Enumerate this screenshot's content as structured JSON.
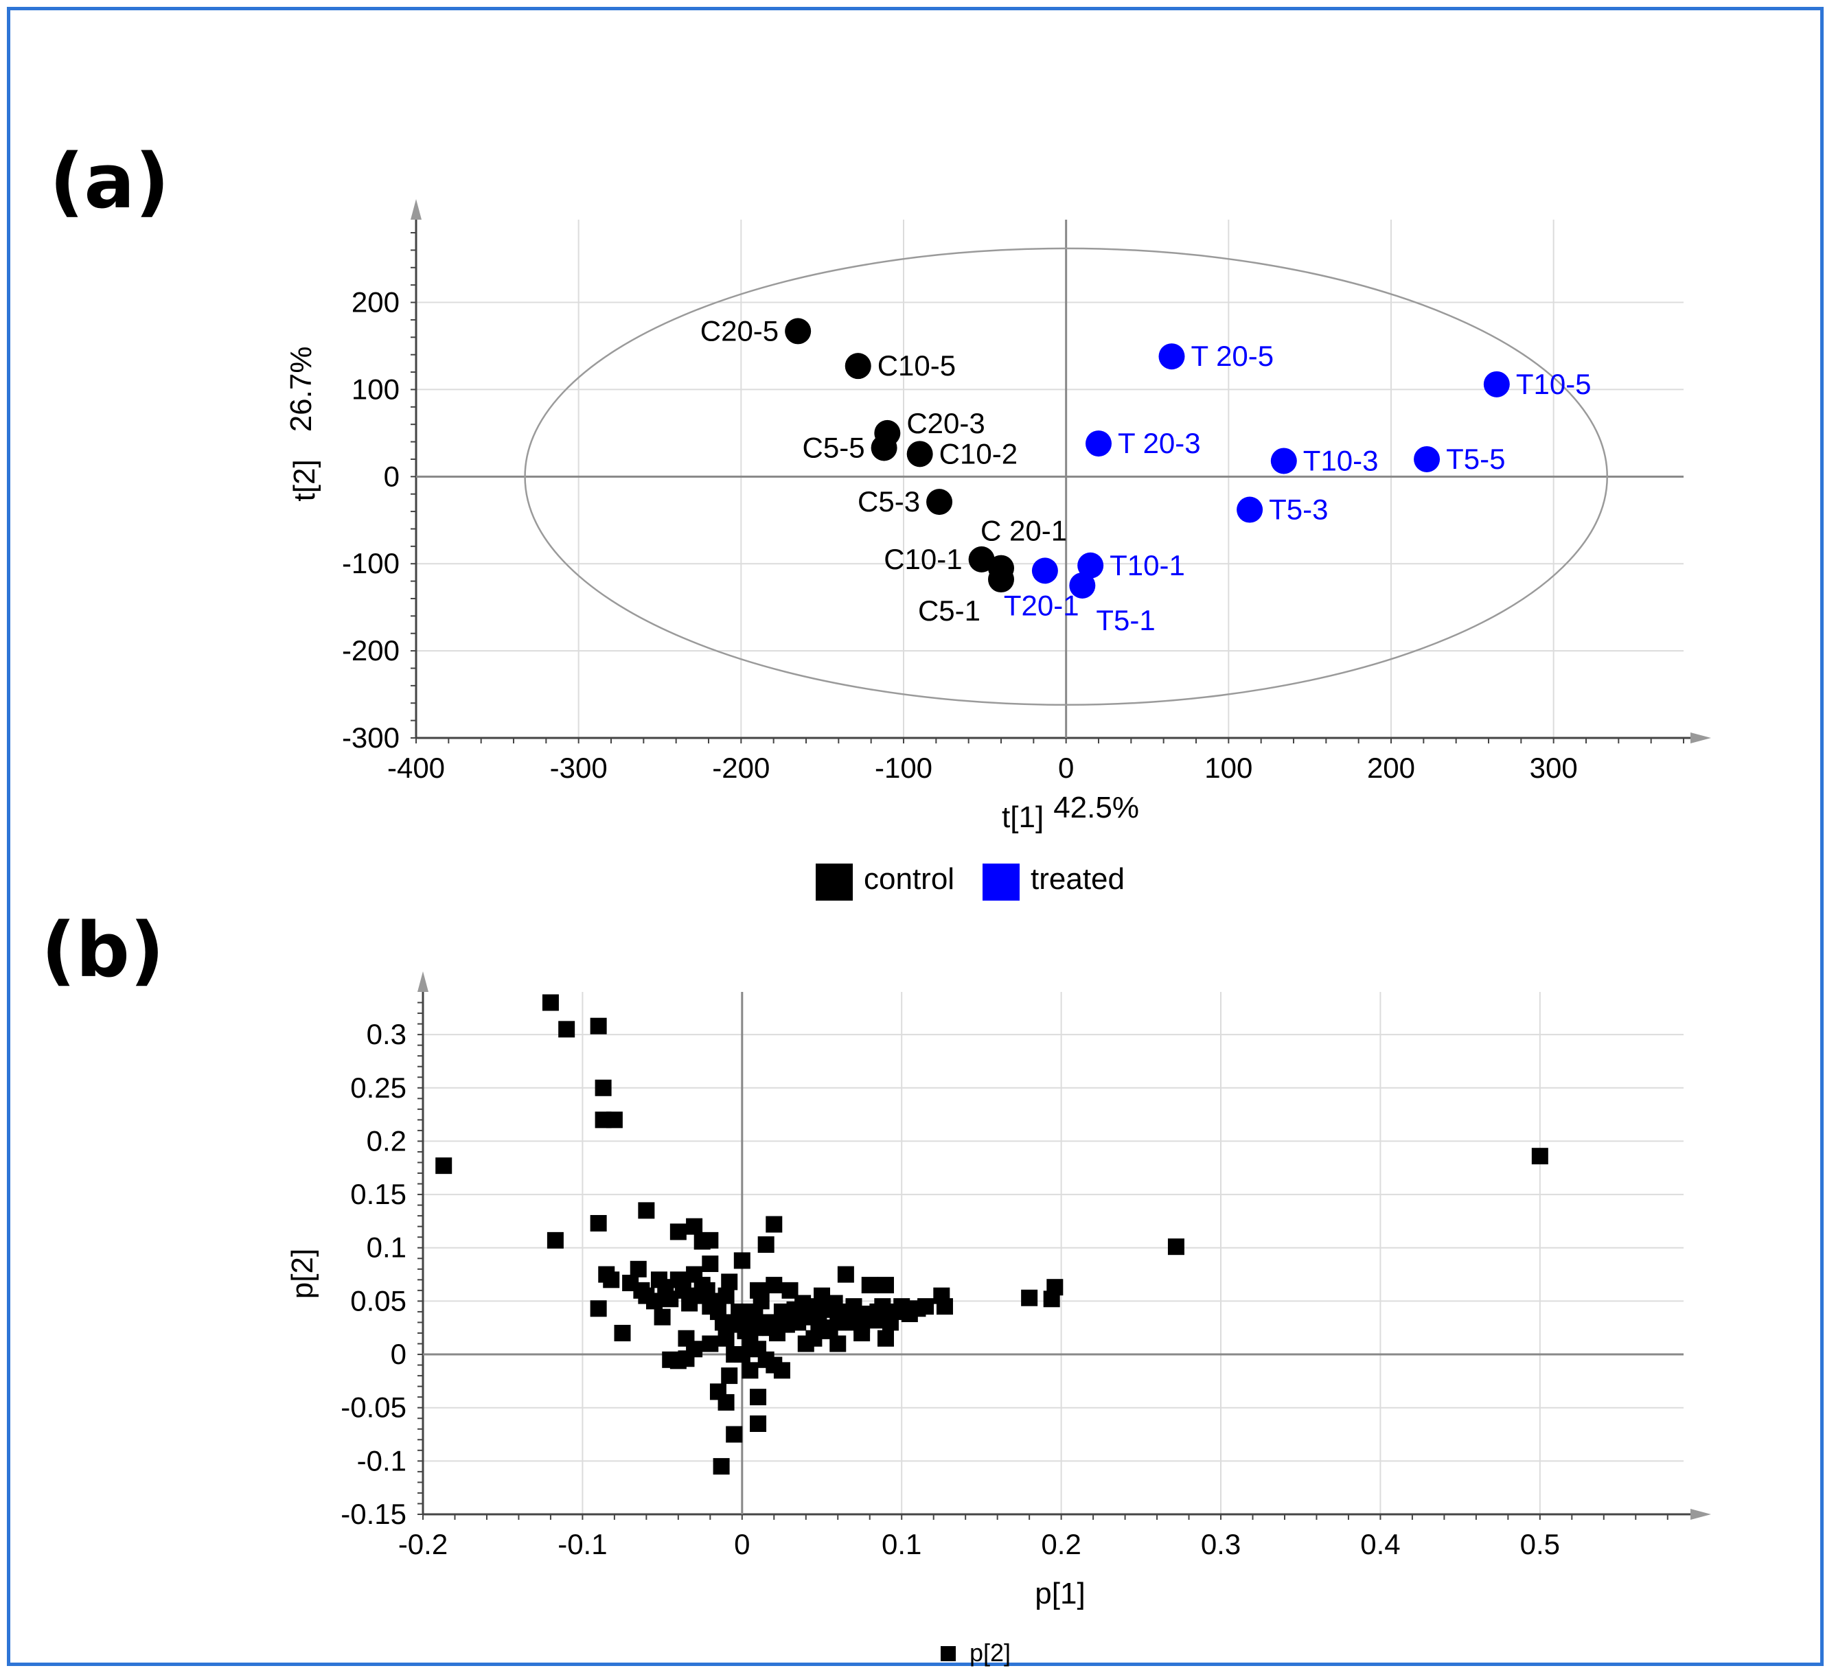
{
  "panels": {
    "a_label": "(a)",
    "b_label": "(b)"
  },
  "colors": {
    "frame": "#2e75d6",
    "control": "#000000",
    "treated": "#0000ff",
    "grid": "#dcdcdc",
    "axis": "#888888"
  },
  "chart_data": [
    {
      "type": "scatter",
      "panel": "(a)",
      "xlabel": "t[1]",
      "xlabel_pct": "42.5%",
      "ylabel": "t[2]",
      "ylabel_pct": "26.7%",
      "xlim": [
        -400,
        380
      ],
      "ylim": [
        -300,
        295
      ],
      "xticks": [
        -400,
        -300,
        -200,
        -100,
        0,
        100,
        200,
        300
      ],
      "yticks": [
        -300,
        -200,
        -100,
        0,
        100,
        200
      ],
      "ellipse": {
        "rx": 333,
        "ry": 262
      },
      "legend": [
        {
          "name": "control",
          "color": "#000000"
        },
        {
          "name": "treated",
          "color": "#0000ff"
        }
      ],
      "series": [
        {
          "name": "control",
          "color": "#000000",
          "points": [
            {
              "label": "C20-5",
              "x": -165,
              "y": 167,
              "pos": "left"
            },
            {
              "label": "C10-5",
              "x": -128,
              "y": 127,
              "pos": "right"
            },
            {
              "label": "C20-3",
              "x": -110,
              "y": 50,
              "pos": "right-up"
            },
            {
              "label": "C5-5",
              "x": -112,
              "y": 33,
              "pos": "left"
            },
            {
              "label": "C10-2",
              "x": -90,
              "y": 26,
              "pos": "right"
            },
            {
              "label": "C5-3",
              "x": -78,
              "y": -29,
              "pos": "left"
            },
            {
              "label": "C 20-1",
              "x": -40,
              "y": -105,
              "pos": "up"
            },
            {
              "label": "C10-1",
              "x": -52,
              "y": -95,
              "pos": "left"
            },
            {
              "label": "C5-1",
              "x": -40,
              "y": -118,
              "pos": "down-left"
            }
          ]
        },
        {
          "name": "treated",
          "color": "#0000ff",
          "points": [
            {
              "label": "T 20-5",
              "x": 65,
              "y": 138,
              "pos": "right"
            },
            {
              "label": "T10-5",
              "x": 265,
              "y": 106,
              "pos": "right"
            },
            {
              "label": "T 20-3",
              "x": 20,
              "y": 38,
              "pos": "right"
            },
            {
              "label": "T10-3",
              "x": 134,
              "y": 18,
              "pos": "right"
            },
            {
              "label": "T5-5",
              "x": 222,
              "y": 20,
              "pos": "right"
            },
            {
              "label": "T5-3",
              "x": 113,
              "y": -38,
              "pos": "right"
            },
            {
              "label": "T10-1",
              "x": 15,
              "y": -102,
              "pos": "right"
            },
            {
              "label": "T20-1",
              "x": -13,
              "y": -108,
              "pos": "down"
            },
            {
              "label": "T5-1",
              "x": 10,
              "y": -125,
              "pos": "down-right"
            }
          ]
        }
      ]
    },
    {
      "type": "scatter",
      "panel": "(b)",
      "xlabel": "p[1]",
      "ylabel": "p[2]",
      "xlim": [
        -0.2,
        0.59
      ],
      "ylim": [
        -0.15,
        0.34
      ],
      "xticks": [
        -0.2,
        -0.1,
        0,
        0.1,
        0.2,
        0.3,
        0.4,
        0.5
      ],
      "yticks": [
        -0.15,
        -0.1,
        -0.05,
        0,
        0.05,
        0.1,
        0.15,
        0.2,
        0.25,
        0.3
      ],
      "legend": [
        {
          "name": "p[2]",
          "color": "#000000"
        }
      ],
      "series": [
        {
          "name": "p[2]",
          "marker": "square",
          "color": "#000000",
          "x": [
            -0.12,
            -0.11,
            -0.09,
            -0.087,
            -0.087,
            -0.08,
            -0.187,
            -0.117,
            -0.09,
            -0.09,
            0.5,
            0.272,
            0.18,
            0.196,
            0.194,
            -0.06,
            -0.055,
            -0.04,
            -0.03,
            -0.025,
            -0.02,
            0.02,
            0.015,
            -0.065,
            -0.085,
            -0.082,
            -0.07,
            -0.063,
            -0.06,
            -0.052,
            -0.048,
            -0.045,
            -0.04,
            -0.037,
            -0.033,
            -0.03,
            -0.028,
            -0.025,
            -0.022,
            -0.02,
            -0.018,
            -0.015,
            -0.012,
            -0.01,
            -0.008,
            -0.005,
            -0.002,
            0.0,
            0.002,
            0.005,
            0.008,
            0.01,
            0.012,
            0.015,
            0.018,
            0.02,
            0.022,
            0.025,
            0.028,
            0.03,
            0.033,
            0.035,
            0.038,
            0.04,
            0.043,
            0.045,
            0.048,
            0.05,
            0.053,
            0.055,
            0.058,
            0.06,
            0.063,
            0.065,
            0.068,
            0.07,
            0.073,
            0.075,
            0.078,
            0.08,
            0.083,
            0.085,
            0.088,
            0.09,
            0.093,
            0.095,
            0.1,
            0.105,
            0.11,
            0.115,
            0.125,
            0.127,
            -0.045,
            -0.04,
            -0.035,
            -0.03,
            -0.02,
            -0.01,
            0.0,
            0.01,
            0.015,
            0.02,
            0.025,
            -0.015,
            -0.01,
            -0.005,
            0.005,
            0.01,
            -0.008,
            0.01,
            -0.013,
            -0.005,
            0.005,
            0.045,
            0.06,
            0.075,
            0.09,
            -0.075,
            -0.02,
            0.0,
            0.03,
            0.05,
            -0.05,
            -0.035,
            0.008,
            0.04,
            0.07,
            0.085
          ],
          "y": [
            0.33,
            0.305,
            0.308,
            0.25,
            0.22,
            0.22,
            0.177,
            0.107,
            0.123,
            0.043,
            0.186,
            0.101,
            0.053,
            0.063,
            0.052,
            0.135,
            0.05,
            0.115,
            0.12,
            0.106,
            0.107,
            0.122,
            0.103,
            0.08,
            0.075,
            0.07,
            0.067,
            0.06,
            0.055,
            0.07,
            0.063,
            0.052,
            0.07,
            0.06,
            0.048,
            0.075,
            0.055,
            0.065,
            0.06,
            0.045,
            0.05,
            0.04,
            0.03,
            0.055,
            0.068,
            0.028,
            0.04,
            0.035,
            0.022,
            0.03,
            0.04,
            0.06,
            0.05,
            0.03,
            0.025,
            0.065,
            0.02,
            0.04,
            0.028,
            0.06,
            0.042,
            0.03,
            0.048,
            0.035,
            0.045,
            0.038,
            0.03,
            0.055,
            0.042,
            0.022,
            0.048,
            0.03,
            0.036,
            0.075,
            0.04,
            0.045,
            0.035,
            0.028,
            0.038,
            0.065,
            0.032,
            0.04,
            0.045,
            0.065,
            0.03,
            0.04,
            0.045,
            0.038,
            0.043,
            0.045,
            0.055,
            0.045,
            -0.005,
            -0.006,
            -0.004,
            0.005,
            0.01,
            0.015,
            0.0,
            0.005,
            -0.005,
            -0.01,
            -0.015,
            -0.035,
            -0.045,
            0.0,
            0.01,
            -0.04,
            -0.02,
            -0.065,
            -0.105,
            -0.075,
            -0.015,
            0.015,
            0.01,
            0.02,
            0.015,
            0.02,
            0.085,
            0.088,
            0.035,
            0.025,
            0.035,
            0.015,
            0.025,
            0.01,
            0.03,
            0.035
          ]
        }
      ]
    }
  ]
}
